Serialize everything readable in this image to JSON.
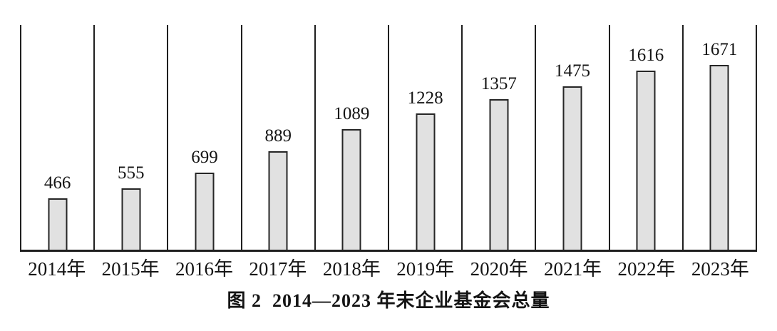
{
  "figure": {
    "caption": "图 2  2014—2023 年末企业基金会总量"
  },
  "chart_data": {
    "type": "bar",
    "title": "图 2  2014—2023 年末企业基金会总量",
    "categories": [
      "2014年",
      "2015年",
      "2016年",
      "2017年",
      "2018年",
      "2019年",
      "2020年",
      "2021年",
      "2022年",
      "2023年"
    ],
    "values": [
      466,
      555,
      699,
      889,
      1089,
      1228,
      1357,
      1475,
      1616,
      1671
    ],
    "xlabel": "",
    "ylabel": "",
    "ylim": [
      0,
      2030
    ],
    "grid": "vertical column separators only",
    "legend_position": "none",
    "data_labels": true,
    "colors": {
      "bar_fill": "#e1e1e1",
      "bar_border": "#262626",
      "axis_line": "#1f1f1f",
      "text": "#141414",
      "background": "#ffffff"
    }
  }
}
